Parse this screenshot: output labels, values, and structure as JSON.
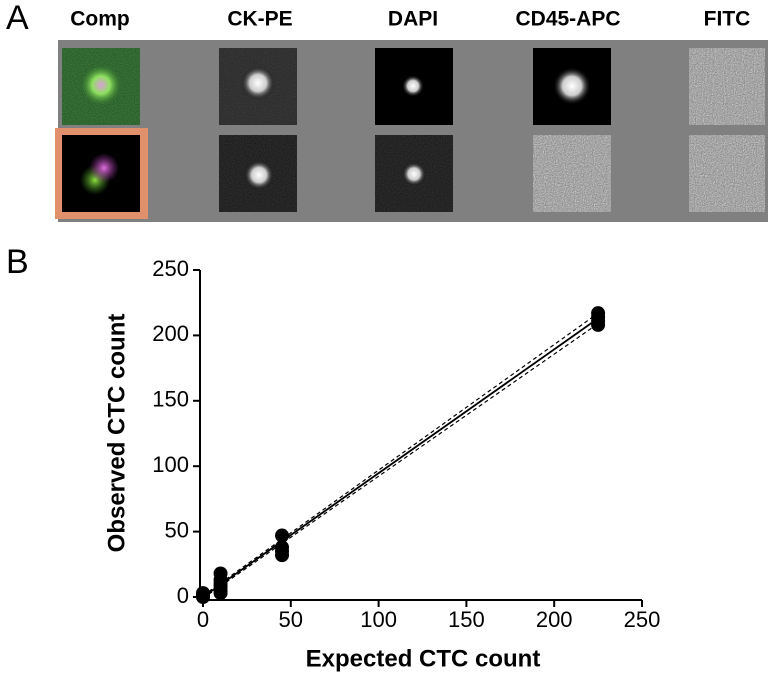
{
  "panel_labels": [
    "A",
    "B"
  ],
  "channels": [
    "Comp",
    "CK-PE",
    "DAPI",
    "CD45-APC",
    "FITC"
  ],
  "chart_data": {
    "type": "scatter",
    "x_label": "Expected CTC count",
    "y_label": "Observed CTC count",
    "xlim": [
      0,
      250
    ],
    "ylim": [
      0,
      250
    ],
    "xticks": [
      0,
      50,
      100,
      150,
      200,
      250
    ],
    "yticks": [
      0,
      50,
      100,
      150,
      200,
      250
    ],
    "series": [
      {
        "color": "#000000",
        "x": [
          0,
          0,
          0,
          0,
          10,
          10,
          10,
          10,
          10,
          10,
          45,
          45,
          45,
          45,
          225,
          225,
          225,
          225
        ],
        "values": [
          0,
          1,
          2,
          3,
          3,
          5,
          8,
          10,
          13,
          18,
          32,
          35,
          38,
          47,
          208,
          211,
          214,
          217
        ]
      }
    ],
    "lines": [
      {
        "style": "solid",
        "x": [
          0,
          225
        ],
        "y": [
          0,
          213
        ]
      },
      {
        "style": "dashed",
        "x": [
          0,
          225
        ],
        "y": [
          1,
          217
        ]
      },
      {
        "style": "dashed",
        "x": [
          0,
          225
        ],
        "y": [
          -1,
          209
        ]
      }
    ]
  }
}
